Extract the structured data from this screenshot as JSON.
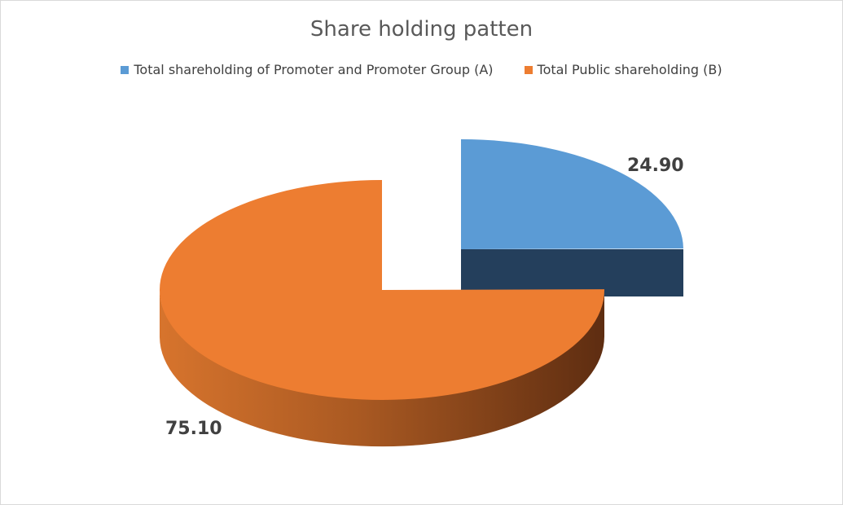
{
  "chart_data": {
    "type": "pie",
    "title": "Share holding patten",
    "categories": [
      "Total shareholding of Promoter and Promoter Group (A)",
      "Total Public shareholding (B)"
    ],
    "values": [
      24.9,
      75.1
    ],
    "value_labels": [
      "24.90",
      "75.10"
    ],
    "colors": [
      "#5B9BD5",
      "#ED7D31"
    ],
    "side_colors": [
      "#243F5C",
      "#6E3414"
    ],
    "exploded_slice": 0,
    "legend_position": "top",
    "style": "3d-exploded"
  }
}
